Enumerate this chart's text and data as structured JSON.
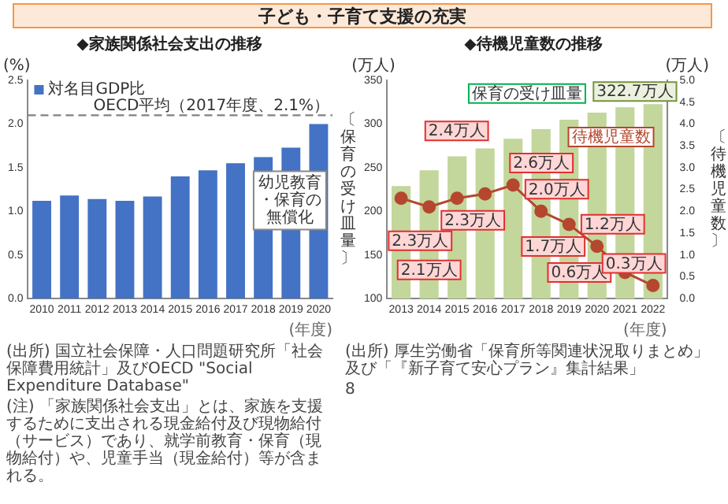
{
  "chart_data": [
    {
      "type": "bar",
      "title": "子ども・子育て支援の充実",
      "subtitle": "◆家族関係社会支出の推移",
      "categories": [
        "2010",
        "2011",
        "2012",
        "2013",
        "2014",
        "2015",
        "2016",
        "2017",
        "2018",
        "2019",
        "2020"
      ],
      "series": [
        {
          "name": "対名目GDP比",
          "color": "#4472c4",
          "values": [
            1.12,
            1.18,
            1.14,
            1.12,
            1.17,
            1.4,
            1.47,
            1.55,
            1.62,
            1.73,
            2.0
          ]
        }
      ],
      "ylabel": "(%)",
      "xlabel": "(年度)",
      "ylim": [
        0,
        2.5
      ],
      "yticks": [
        {
          "value": 0,
          "label": "0.0"
        },
        {
          "value": 0.5,
          "label": "0.5"
        },
        {
          "value": 1,
          "label": "1.0"
        },
        {
          "value": 1.5,
          "label": "1.5"
        },
        {
          "value": 2,
          "label": "2.0"
        },
        {
          "value": 2.5,
          "label": "2.5"
        }
      ],
      "legend": "top left",
      "ref_lines": [
        {
          "axis": "y",
          "value": 2.1,
          "label": "OECD平均（2017年度、2.1%）",
          "color": "#808080",
          "line_style": "dashed"
        }
      ],
      "annotations": [
        "幼児教育・保育の無償化",
        "(出所) 国立社会保障・人口問題研究所「社会保障費用統計」及びOECD \"Social Expenditure Database\"",
        "(注) 「家族関係社会支出」とは、家族を支援するために支出される現金給付及び現物給付（サービス）であり、就学前教育・保育（現物給付）や、児童手当（現金給付）等が含まれる。"
      ]
    },
    {
      "type": "bar",
      "title": "◆待機児童数の推移",
      "categories": [
        "2013",
        "2014",
        "2015",
        "2016",
        "2017",
        "2018",
        "2019",
        "2020",
        "2021",
        "2022"
      ],
      "series": [
        {
          "name": "保育の受け皿量",
          "type": "bar",
          "color": "#c3d69b",
          "values": [
            229,
            247,
            263,
            272,
            283,
            294,
            305,
            313,
            319,
            322.7
          ],
          "value_labels": [
            null,
            null,
            null,
            null,
            null,
            null,
            null,
            null,
            null,
            "322.7万人"
          ]
        },
        {
          "name": "待機児童数",
          "type": "line",
          "axis": "y2",
          "color": "#b5472f",
          "values": [
            2.3,
            2.1,
            2.3,
            2.4,
            2.6,
            2.0,
            1.7,
            1.2,
            0.6,
            0.3
          ],
          "value_labels": [
            "2.3万人",
            "2.1万人",
            "2.3万人",
            "2.4万人",
            "2.6万人",
            "2.0万人",
            "1.7万人",
            "1.2万人",
            "0.6万人",
            "0.3万人"
          ]
        }
      ],
      "xlabel": "(年度)",
      "ylabel": "〔保育の受け皿量〕",
      "y2label": "〔待機児童数〕",
      "ylim": [
        100,
        350
      ],
      "yticks": [
        100,
        150,
        200,
        250,
        300,
        350
      ],
      "y2lim": [
        0,
        5
      ],
      "y2ticks": [
        {
          "value": 0,
          "label": "0.0"
        },
        {
          "value": 0.5,
          "label": "0.5"
        },
        {
          "value": 1,
          "label": "1.0"
        },
        {
          "value": 1.5,
          "label": "1.5"
        },
        {
          "value": 2,
          "label": "2.0"
        },
        {
          "value": 2.5,
          "label": "2.5"
        },
        {
          "value": 3,
          "label": "3.0"
        },
        {
          "value": 3.5,
          "label": "3.5"
        },
        {
          "value": 4,
          "label": "4.0"
        },
        {
          "value": 4.5,
          "label": "4.5"
        },
        {
          "value": 5,
          "label": "5.0"
        }
      ],
      "marker": "circle",
      "annotations": [
        "(万人)",
        "(万人)",
        "(出所) 厚生労働省「保育所等関連状況取りまとめ」及び「『新子育て安心プラン』集計結果」",
        "8"
      ]
    }
  ]
}
